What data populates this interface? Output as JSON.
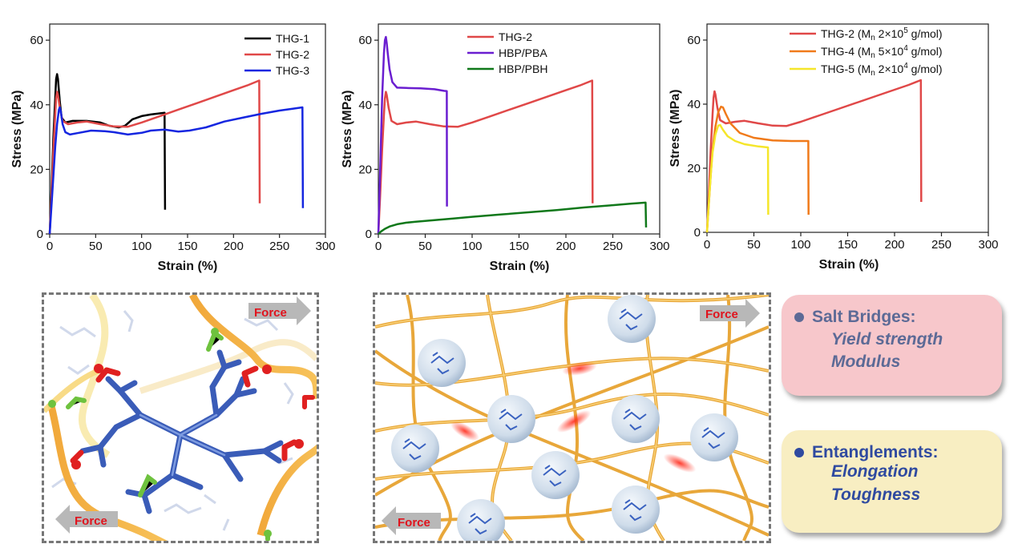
{
  "chart_data": [
    {
      "type": "line",
      "xlabel": "Strain (%)",
      "ylabel": "Stress (MPa)",
      "xlim": [
        0,
        300
      ],
      "ylim": [
        0,
        65
      ],
      "xticks": [
        "0",
        "50",
        "100",
        "150",
        "200",
        "250",
        "300"
      ],
      "yticks": [
        "0",
        "20",
        "40",
        "60"
      ],
      "legend_position": "top-right",
      "series": [
        {
          "name": "THG-1",
          "color": "#000000",
          "points": [
            [
              0,
              0
            ],
            [
              2,
              14
            ],
            [
              4,
              30
            ],
            [
              6,
              42
            ],
            [
              7,
              48
            ],
            [
              8,
              49.5
            ],
            [
              9,
              48
            ],
            [
              11,
              41
            ],
            [
              13,
              36
            ],
            [
              17,
              34.5
            ],
            [
              25,
              35
            ],
            [
              40,
              35
            ],
            [
              55,
              34.5
            ],
            [
              65,
              33.5
            ],
            [
              75,
              33
            ],
            [
              82,
              33.5
            ],
            [
              90,
              35.5
            ],
            [
              100,
              36.5
            ],
            [
              110,
              37
            ],
            [
              118,
              37.3
            ],
            [
              125,
              37.5
            ],
            [
              125.5,
              7.5
            ]
          ]
        },
        {
          "name": "THG-2",
          "color": "#e04848",
          "points": [
            [
              0,
              0
            ],
            [
              2,
              12
            ],
            [
              4,
              26
            ],
            [
              6,
              37
            ],
            [
              7,
              42
            ],
            [
              8,
              44
            ],
            [
              9,
              43
            ],
            [
              11,
              39
            ],
            [
              14,
              35
            ],
            [
              20,
              34
            ],
            [
              30,
              34.5
            ],
            [
              40,
              34.8
            ],
            [
              55,
              34
            ],
            [
              70,
              33.3
            ],
            [
              85,
              33.2
            ],
            [
              100,
              34.5
            ],
            [
              120,
              36.5
            ],
            [
              140,
              38.5
            ],
            [
              160,
              40.5
            ],
            [
              180,
              42.5
            ],
            [
              200,
              44.5
            ],
            [
              215,
              46
            ],
            [
              228,
              47.5
            ],
            [
              228.5,
              9.5
            ]
          ]
        },
        {
          "name": "THG-3",
          "color": "#1526e0",
          "points": [
            [
              0,
              0
            ],
            [
              2,
              9
            ],
            [
              4,
              18
            ],
            [
              6,
              27
            ],
            [
              8,
              34
            ],
            [
              10,
              38.5
            ],
            [
              11,
              39.2
            ],
            [
              12,
              38
            ],
            [
              14,
              34
            ],
            [
              17,
              31.5
            ],
            [
              22,
              30.8
            ],
            [
              30,
              31.2
            ],
            [
              45,
              32
            ],
            [
              60,
              31.8
            ],
            [
              70,
              31.5
            ],
            [
              85,
              30.8
            ],
            [
              100,
              31.3
            ],
            [
              110,
              32
            ],
            [
              125,
              32.3
            ],
            [
              140,
              31.7
            ],
            [
              152,
              32
            ],
            [
              170,
              33
            ],
            [
              190,
              34.8
            ],
            [
              210,
              36
            ],
            [
              230,
              37.2
            ],
            [
              250,
              38.2
            ],
            [
              265,
              38.8
            ],
            [
              275,
              39.2
            ],
            [
              275.5,
              8
            ]
          ]
        }
      ]
    },
    {
      "type": "line",
      "xlabel": "Strain (%)",
      "ylabel": "Stress (MPa)",
      "xlim": [
        0,
        300
      ],
      "ylim": [
        0,
        65
      ],
      "xticks": [
        "0",
        "50",
        "100",
        "150",
        "200",
        "250",
        "300"
      ],
      "yticks": [
        "0",
        "20",
        "40",
        "60"
      ],
      "legend_position": "top",
      "series": [
        {
          "name": "THG-2",
          "color": "#e04848",
          "points": [
            [
              0,
              0
            ],
            [
              2,
              12
            ],
            [
              4,
              26
            ],
            [
              6,
              37
            ],
            [
              7,
              42
            ],
            [
              8,
              44
            ],
            [
              9,
              43
            ],
            [
              11,
              39
            ],
            [
              14,
              35
            ],
            [
              20,
              34
            ],
            [
              30,
              34.5
            ],
            [
              40,
              34.8
            ],
            [
              55,
              34
            ],
            [
              70,
              33.3
            ],
            [
              85,
              33.2
            ],
            [
              100,
              34.5
            ],
            [
              120,
              36.5
            ],
            [
              140,
              38.5
            ],
            [
              160,
              40.5
            ],
            [
              180,
              42.5
            ],
            [
              200,
              44.5
            ],
            [
              215,
              46
            ],
            [
              228,
              47.5
            ],
            [
              228.5,
              9.5
            ]
          ]
        },
        {
          "name": "HBP/PBA",
          "color": "#6a1ed0",
          "points": [
            [
              0,
              0
            ],
            [
              2,
              20
            ],
            [
              4,
              42
            ],
            [
              6,
              56
            ],
            [
              7,
              60
            ],
            [
              8,
              61
            ],
            [
              9,
              59
            ],
            [
              10,
              56
            ],
            [
              12,
              51
            ],
            [
              15,
              47
            ],
            [
              20,
              45.3
            ],
            [
              30,
              45.2
            ],
            [
              45,
              45.1
            ],
            [
              60,
              44.8
            ],
            [
              70,
              44.3
            ],
            [
              73,
              44.2
            ],
            [
              73.2,
              8.5
            ]
          ]
        },
        {
          "name": "HBP/PBH",
          "color": "#10781a",
          "points": [
            [
              0,
              0
            ],
            [
              3,
              0.8
            ],
            [
              7,
              1.6
            ],
            [
              12,
              2.3
            ],
            [
              20,
              3
            ],
            [
              30,
              3.5
            ],
            [
              40,
              3.8
            ],
            [
              60,
              4.3
            ],
            [
              80,
              4.8
            ],
            [
              100,
              5.3
            ],
            [
              130,
              6
            ],
            [
              160,
              6.7
            ],
            [
              190,
              7.4
            ],
            [
              220,
              8.2
            ],
            [
              250,
              8.9
            ],
            [
              270,
              9.4
            ],
            [
              285,
              9.7
            ],
            [
              285.5,
              2
            ]
          ]
        }
      ]
    },
    {
      "type": "line",
      "xlabel": "Strain (%)",
      "ylabel": "Stress (MPa)",
      "xlim": [
        0,
        300
      ],
      "ylim": [
        0,
        65
      ],
      "xticks": [
        "0",
        "50",
        "100",
        "150",
        "200",
        "250",
        "300"
      ],
      "yticks": [
        "0",
        "20",
        "40",
        "60"
      ],
      "legend_position": "top-right",
      "series": [
        {
          "name": "THG-2 (Mn 2×10⁵ g/mol)",
          "label_main": "THG-2 (M",
          "label_sub": "n",
          "label_num": " 2×10",
          "label_sup": "5",
          "label_unit": " g/mol)",
          "color": "#e04848",
          "points": [
            [
              0,
              0
            ],
            [
              2,
              12
            ],
            [
              4,
              26
            ],
            [
              6,
              37
            ],
            [
              7,
              42
            ],
            [
              8,
              44
            ],
            [
              9,
              43
            ],
            [
              11,
              39
            ],
            [
              14,
              35
            ],
            [
              20,
              34
            ],
            [
              30,
              34.5
            ],
            [
              40,
              34.8
            ],
            [
              55,
              34
            ],
            [
              70,
              33.3
            ],
            [
              85,
              33.2
            ],
            [
              100,
              34.5
            ],
            [
              120,
              36.5
            ],
            [
              140,
              38.5
            ],
            [
              160,
              40.5
            ],
            [
              180,
              42.5
            ],
            [
              200,
              44.5
            ],
            [
              215,
              46
            ],
            [
              228,
              47.5
            ],
            [
              228.5,
              9.5
            ]
          ]
        },
        {
          "name": "THG-4 (Mn 5×10⁴ g/mol)",
          "label_main": "THG-4 (M",
          "label_sub": "n",
          "label_num": " 5×10",
          "label_sup": "4",
          "label_unit": " g/mol)",
          "color": "#f07a1a",
          "points": [
            [
              0,
              0
            ],
            [
              2,
              9
            ],
            [
              4,
              18
            ],
            [
              6,
              26
            ],
            [
              9,
              33
            ],
            [
              12,
              37.5
            ],
            [
              15,
              39.2
            ],
            [
              17,
              39
            ],
            [
              20,
              37
            ],
            [
              25,
              34
            ],
            [
              35,
              31
            ],
            [
              50,
              29.5
            ],
            [
              70,
              28.7
            ],
            [
              90,
              28.5
            ],
            [
              108,
              28.5
            ],
            [
              108.3,
              5.5
            ]
          ]
        },
        {
          "name": "THG-5 (Mn 2×10⁴ g/mol)",
          "label_main": "THG-5 (M",
          "label_sub": "n",
          "label_num": " 2×10",
          "label_sup": "4",
          "label_unit": " g/mol)",
          "color": "#f5e62a",
          "points": [
            [
              0,
              0
            ],
            [
              2,
              9
            ],
            [
              4,
              18
            ],
            [
              6,
              25
            ],
            [
              9,
              30.5
            ],
            [
              12,
              33.3
            ],
            [
              14,
              33.5
            ],
            [
              17,
              32
            ],
            [
              22,
              30
            ],
            [
              30,
              28.5
            ],
            [
              40,
              27.5
            ],
            [
              55,
              26.8
            ],
            [
              65,
              26.5
            ],
            [
              65.3,
              5.5
            ]
          ]
        }
      ]
    }
  ],
  "schematic_left": {
    "force_top": "Force",
    "force_bottom": "Force"
  },
  "schematic_right": {
    "force_top": "Force",
    "force_bottom": "Force"
  },
  "cards": [
    {
      "title": "Salt Bridges:",
      "line1": "Yield strength",
      "line2": "Modulus",
      "bg": "#f7c7cb",
      "text_color": "#5c6a96"
    },
    {
      "title": "Entanglements:",
      "line1": "Elongation",
      "line2": "Toughness",
      "bg": "#f8eec2",
      "text_color": "#2f4aa0"
    }
  ]
}
